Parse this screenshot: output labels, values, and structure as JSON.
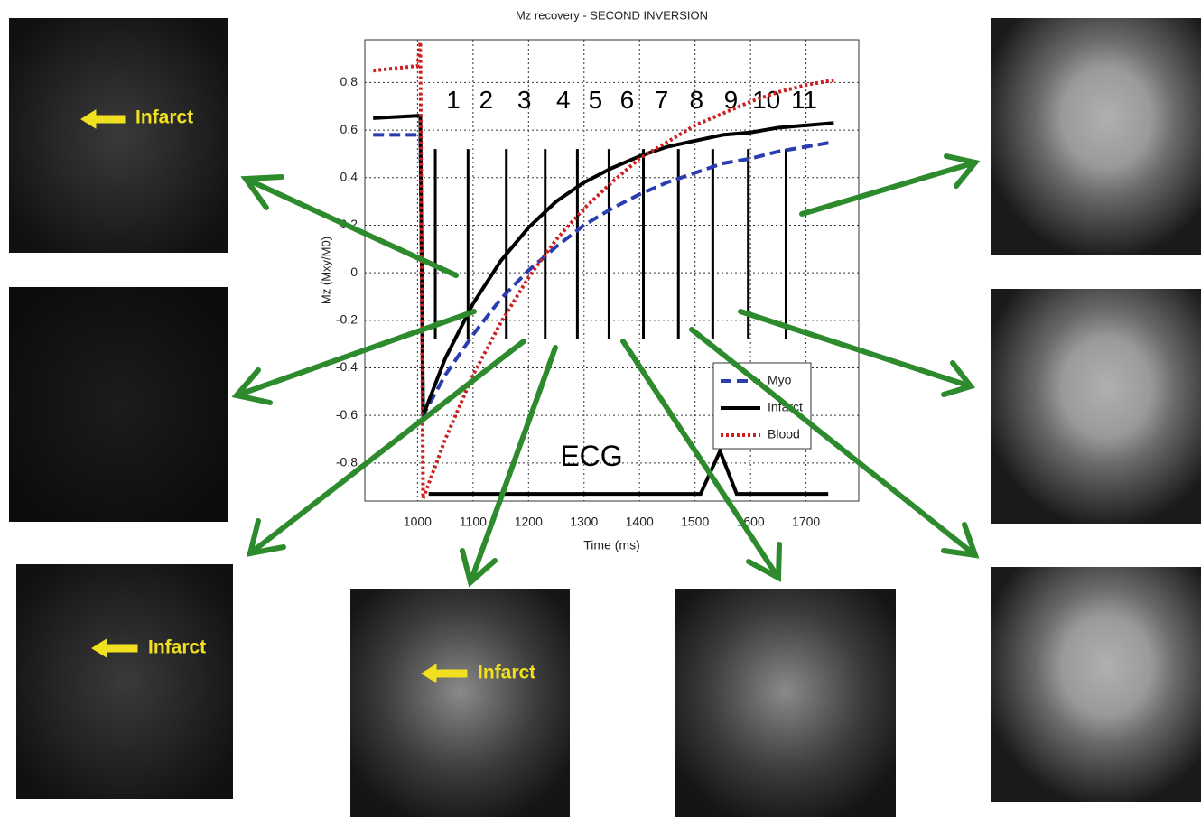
{
  "chart_data": {
    "type": "line",
    "title": "Mz recovery - SECOND INVERSION",
    "xlabel": "Time (ms)",
    "ylabel": "Mz (Mxy/M0)",
    "x": [
      920,
      1000,
      1005,
      1010,
      1050,
      1100,
      1150,
      1200,
      1250,
      1300,
      1350,
      1400,
      1450,
      1500,
      1550,
      1600,
      1650,
      1700,
      1750
    ],
    "series": [
      {
        "name": "Myo",
        "color": "#2a3cae",
        "style": "dashed",
        "values": [
          0.58,
          0.58,
          0.58,
          -0.6,
          -0.43,
          -0.26,
          -0.11,
          0.01,
          0.11,
          0.2,
          0.27,
          0.33,
          0.38,
          0.42,
          0.46,
          0.48,
          0.51,
          0.53,
          0.55
        ]
      },
      {
        "name": "Infarct",
        "color": "#000000",
        "style": "solid",
        "values": [
          0.65,
          0.66,
          0.66,
          -0.6,
          -0.36,
          -0.13,
          0.05,
          0.19,
          0.3,
          0.38,
          0.44,
          0.49,
          0.53,
          0.555,
          0.58,
          0.59,
          0.61,
          0.62,
          0.63
        ]
      },
      {
        "name": "Blood",
        "color": "#cc2020",
        "style": "dotted",
        "values": [
          0.85,
          0.87,
          0.97,
          -0.95,
          -0.7,
          -0.43,
          -0.21,
          -0.02,
          0.14,
          0.27,
          0.38,
          0.48,
          0.55,
          0.62,
          0.67,
          0.72,
          0.76,
          0.79,
          0.81
        ]
      }
    ],
    "xlim": [
      905,
      1795
    ],
    "ylim": [
      -0.96,
      0.98
    ],
    "xticks": [
      1000,
      1100,
      1200,
      1300,
      1400,
      1500,
      1600,
      1700
    ],
    "yticks": [
      -0.8,
      -0.6,
      -0.4,
      -0.2,
      0,
      0.2,
      0.4,
      0.6,
      0.8
    ],
    "grid": true,
    "legend": "lower-right",
    "readouts": {
      "times": [
        1032,
        1091,
        1160,
        1230,
        1288,
        1345,
        1407,
        1470,
        1532,
        1596,
        1664
      ],
      "labels": [
        "1",
        "2",
        "3",
        "4",
        "5",
        "6",
        "7",
        "8",
        "9",
        "10",
        "11"
      ],
      "top": 0.52,
      "bottom": -0.28
    },
    "ecg": {
      "label": "ECG",
      "x": [
        1020,
        1510,
        1545,
        1575,
        1740
      ],
      "values": [
        -0.93,
        -0.93,
        -0.75,
        -0.93,
        -0.93
      ]
    }
  },
  "infarct_labels": [
    "Infarct",
    "Infarct",
    "Infarct"
  ]
}
